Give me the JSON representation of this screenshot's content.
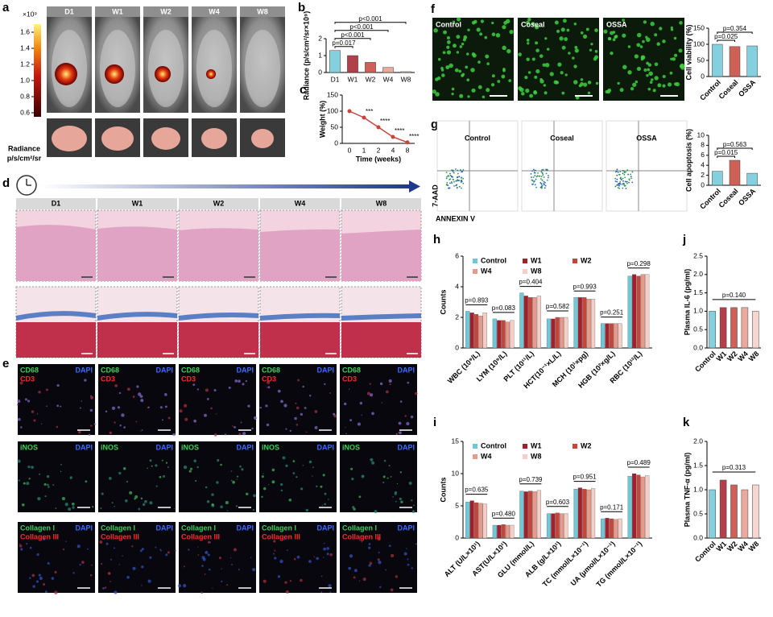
{
  "panel_labels": [
    "a",
    "b",
    "c",
    "d",
    "e",
    "f",
    "g",
    "h",
    "i",
    "j",
    "k"
  ],
  "panel_a": {
    "colorbar": {
      "unit": "×10⁹",
      "lim": [
        0.55,
        1.7
      ],
      "ticks": [
        1.6,
        1.4,
        1.2,
        {
          "value": 1.0,
          "label": "1.0"
        },
        0.8,
        0.6
      ],
      "title": "Radiance",
      "units": "p/s/cm²/sr"
    },
    "columns": [
      "D1",
      "W1",
      "W2",
      "W4",
      "W8"
    ]
  },
  "panel_d": {
    "columns": [
      "D1",
      "W1",
      "W2",
      "W4",
      "W8"
    ]
  },
  "panel_e": {
    "rows": [
      [
        "CD68",
        "CD3",
        "DAPI"
      ],
      [
        "iNOS",
        "DAPI"
      ],
      [
        "Collagen I",
        "Collagen III",
        "DAPI"
      ]
    ]
  },
  "panel_f": {
    "images": [
      "Control",
      "Coseal",
      "OSSA"
    ]
  },
  "panel_g": {
    "images": [
      "Control",
      "Coseal",
      "OSSA"
    ],
    "y_label": "7-AAD",
    "x_label": "ANNEXIN V"
  },
  "chart_data": [
    {
      "type": "bar",
      "ylabel": "Radiance (p/s/cm²/sr×10⁹)",
      "categories": [
        "D1",
        "W1",
        "W2",
        "W4",
        "W8"
      ],
      "values": [
        1.3,
        1.0,
        0.6,
        0.3,
        0.05
      ],
      "colors": [
        "#6fc8d8",
        "#a31f2c",
        "#c6453a",
        "#e69a8c",
        "#f5cfc7"
      ],
      "ylim": [
        0,
        2
      ],
      "yticks": [
        0,
        1,
        2
      ],
      "annotations": [
        "p=0.017",
        "p<0.001",
        "p<0.001",
        "p<0.001"
      ]
    },
    {
      "type": "line",
      "ylabel": "Weight (%)",
      "xlabel": "Time (weeks)",
      "categories": [
        "0",
        "1",
        "2",
        "4",
        "8"
      ],
      "values": [
        100,
        80,
        50,
        20,
        3
      ],
      "color": "#c6453a",
      "ylim": [
        0,
        150
      ],
      "yticks": [
        0,
        50,
        100,
        150
      ],
      "annotations": [
        "***",
        "****",
        "****",
        "****"
      ]
    },
    {
      "type": "bar",
      "ylabel": "Cell viability (%)",
      "categories": [
        "Control",
        "Coseal",
        "OSSA"
      ],
      "values": [
        100,
        93,
        95
      ],
      "colors": [
        "#6fc8d8",
        "#c6453a",
        "#6fc8d8"
      ],
      "ylim": [
        0,
        150
      ],
      "yticks": [
        0,
        50,
        100,
        150
      ],
      "annotations": [
        "p=0.025",
        "p=0.354"
      ]
    },
    {
      "type": "bar",
      "ylabel": "Cell apoptosis (%)",
      "categories": [
        "Control",
        "Coseal",
        "OSSA"
      ],
      "values": [
        2.8,
        5.0,
        2.4
      ],
      "colors": [
        "#6fc8d8",
        "#c6453a",
        "#6fc8d8"
      ],
      "ylim": [
        0,
        10
      ],
      "yticks": [
        0,
        2,
        4,
        6,
        8,
        10
      ],
      "annotations": [
        "p=0.015",
        "p=0.563"
      ]
    },
    {
      "type": "bar",
      "ylabel": "Counts",
      "categories": [
        "WBC (10⁹/L)",
        "LYM (10⁹/L)",
        "PLT (10¹¹/L)",
        "HCT(10⁻¹×L/L)",
        "MCH (10¹×pg)",
        "HGB (10²×g/L)",
        "RBC (10¹²/L)"
      ],
      "series": [
        {
          "name": "Control",
          "color": "#6fc8d8",
          "values": [
            2.4,
            1.9,
            3.6,
            1.9,
            3.3,
            1.6,
            4.7
          ]
        },
        {
          "name": "W1",
          "color": "#a31f2c",
          "values": [
            2.3,
            1.8,
            3.4,
            1.9,
            3.3,
            1.6,
            4.8
          ]
        },
        {
          "name": "W2",
          "color": "#c6453a",
          "values": [
            2.2,
            1.8,
            3.3,
            2.0,
            3.3,
            1.6,
            4.7
          ]
        },
        {
          "name": "W4",
          "color": "#e69a8c",
          "values": [
            2.1,
            1.7,
            3.3,
            2.0,
            3.2,
            1.6,
            4.8
          ]
        },
        {
          "name": "W8",
          "color": "#f5cfc7",
          "values": [
            2.3,
            1.8,
            3.4,
            2.0,
            3.2,
            1.6,
            4.8
          ]
        }
      ],
      "ylim": [
        0,
        6
      ],
      "yticks": [
        0,
        2,
        4,
        6
      ],
      "annotations": [
        "p=0.893",
        "p=0.083",
        "p=0.404",
        "p=0.582",
        "p=0.993",
        "p=0.251",
        "p=0.298"
      ]
    },
    {
      "type": "bar",
      "ylabel": "Counts",
      "categories": [
        "ALT (U/L×10¹)",
        "AST(U/L×10¹)",
        "GLU (mmol/L)",
        "ALB (g/L×10¹)",
        "TC (mmol/L×10⁻¹)",
        "UA (μmol/L×10⁻¹)",
        "TG (mmol/L×10⁻¹)"
      ],
      "series": [
        {
          "name": "Control",
          "color": "#6fc8d8",
          "values": [
            5.6,
            2.0,
            7.3,
            3.8,
            7.6,
            3.0,
            9.6
          ]
        },
        {
          "name": "W1",
          "color": "#a31f2c",
          "values": [
            5.8,
            2.0,
            7.2,
            3.8,
            7.8,
            3.1,
            10.0
          ]
        },
        {
          "name": "W2",
          "color": "#c6453a",
          "values": [
            5.5,
            2.1,
            7.3,
            3.9,
            7.6,
            3.0,
            9.8
          ]
        },
        {
          "name": "W4",
          "color": "#e69a8c",
          "values": [
            5.4,
            2.0,
            7.2,
            3.8,
            7.5,
            2.9,
            9.5
          ]
        },
        {
          "name": "W8",
          "color": "#f5cfc7",
          "values": [
            5.3,
            2.0,
            7.4,
            3.8,
            7.7,
            3.0,
            9.7
          ]
        }
      ],
      "ylim": [
        0,
        15
      ],
      "yticks": [
        0,
        5,
        10,
        15
      ],
      "annotations": [
        "p=0.635",
        "p=0.480",
        "p=0.739",
        "p=0.603",
        "p=0.951",
        "p=0.171",
        "p=0.489"
      ]
    },
    {
      "type": "bar",
      "ylabel": "Plasma IL-6 (pg/ml)",
      "categories": [
        "Control",
        "W1",
        "W2",
        "W4",
        "W8"
      ],
      "values": [
        1.0,
        1.1,
        1.1,
        1.1,
        1.0
      ],
      "colors": [
        "#6fc8d8",
        "#a31f2c",
        "#c6453a",
        "#e69a8c",
        "#f5cfc7"
      ],
      "ylim": [
        0,
        2.5
      ],
      "yticks": [
        {
          "value": 0,
          "label": "0.0"
        },
        0.5,
        {
          "value": 1,
          "label": "1.0"
        },
        1.5,
        {
          "value": 2,
          "label": "2.0"
        },
        2.5
      ],
      "annotations": [
        "p=0.140"
      ]
    },
    {
      "type": "bar",
      "ylabel": "Plasma TNF-α (pg/ml)",
      "categories": [
        "Control",
        "W1",
        "W2",
        "W4",
        "W8"
      ],
      "values": [
        1.0,
        1.2,
        1.1,
        1.0,
        1.1
      ],
      "colors": [
        "#6fc8d8",
        "#a31f2c",
        "#c6453a",
        "#e69a8c",
        "#f5cfc7"
      ],
      "ylim": [
        0,
        2
      ],
      "yticks": [
        {
          "value": 0,
          "label": "0.0"
        },
        0.5,
        {
          "value": 1,
          "label": "1.0"
        },
        1.5,
        {
          "value": 2,
          "label": "2.0"
        }
      ],
      "annotations": [
        "p=0.313"
      ]
    }
  ]
}
